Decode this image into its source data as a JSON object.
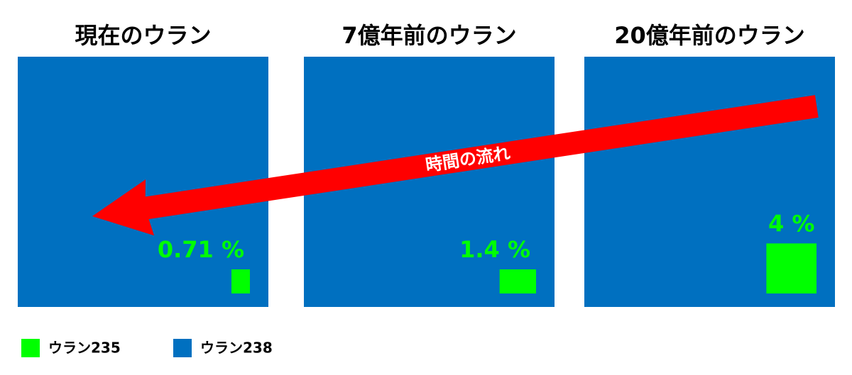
{
  "chart_data": {
    "type": "proportion",
    "categories": [
      "現在のウラン",
      "7億年前のウラン",
      "20億年前のウラン"
    ],
    "values": [
      0.71,
      1.4,
      4
    ],
    "value_labels": [
      "0.71 %",
      "1.4 %",
      "4 %"
    ],
    "legend": [
      {
        "name": "ウラン235",
        "color": "#00ff00"
      },
      {
        "name": "ウラン238",
        "color": "#0070c0"
      }
    ],
    "annotation": "時間の流れ",
    "annotation_color": "#ff0000"
  }
}
